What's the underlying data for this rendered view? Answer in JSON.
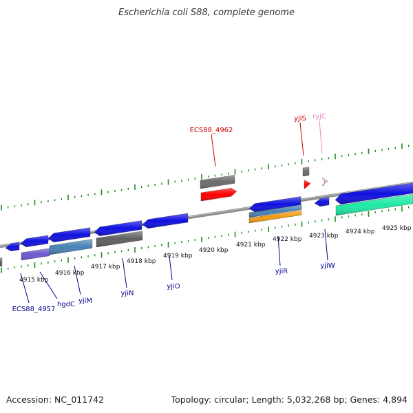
{
  "title": "Escherichia coli S88, complete genome",
  "footer": {
    "accession": "Accession: NC_011742",
    "info": "Topology: circular; Length: 5,032,268 bp; Genes: 4,894"
  },
  "colors": {
    "backbone": "#8c8c8c",
    "tick": "#1a8a1a",
    "label_forward": "#cc0000",
    "label_reverse": "#00008b",
    "label_rna": "#e98bc4"
  },
  "ticks": [
    {
      "label": "4915 kbp"
    },
    {
      "label": "4916 kbp"
    },
    {
      "label": "4917 kbp"
    },
    {
      "label": "4918 kbp"
    },
    {
      "label": "4919 kbp"
    },
    {
      "label": "4920 kbp"
    },
    {
      "label": "4921 kbp"
    },
    {
      "label": "4922 kbp"
    },
    {
      "label": "4923 kbp"
    },
    {
      "label": "4924 kbp"
    },
    {
      "label": "4925 kbp"
    }
  ],
  "gene_labels": [
    {
      "text": "ECS88_4962",
      "kind": "forward"
    },
    {
      "text": "yjiS",
      "kind": "forward"
    },
    {
      "text": "ryjC",
      "kind": "rna"
    },
    {
      "text": "ECS88_4957",
      "kind": "reverse"
    },
    {
      "text": "hgdC",
      "kind": "reverse"
    },
    {
      "text": "yjiM",
      "kind": "reverse"
    },
    {
      "text": "yjiN",
      "kind": "reverse"
    },
    {
      "text": "yjiO",
      "kind": "reverse"
    },
    {
      "text": "yjiR",
      "kind": "reverse"
    },
    {
      "text": "yjiW",
      "kind": "reverse"
    }
  ]
}
